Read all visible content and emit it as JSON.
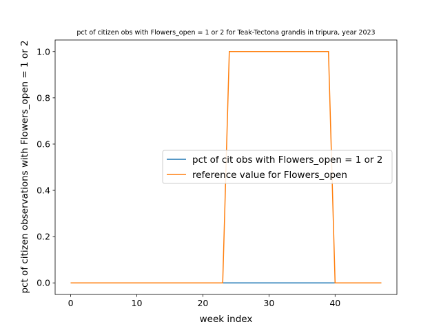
{
  "chart_data": {
    "type": "line",
    "title": "pct of citizen obs with Flowers_open = 1 or 2 for Teak-Tectona grandis in tripura, year 2023",
    "xlabel": "week index",
    "ylabel": "pct of citizen observations with Flowers_open = 1 or 2",
    "xlim": [
      -2.35,
      49.35
    ],
    "ylim": [
      -0.05,
      1.05
    ],
    "x_ticks": [
      0,
      10,
      20,
      30,
      40
    ],
    "y_ticks": [
      0.0,
      0.2,
      0.4,
      0.6,
      0.8,
      1.0
    ],
    "x_tick_labels": [
      "0",
      "10",
      "20",
      "30",
      "40"
    ],
    "y_tick_labels": [
      "0.0",
      "0.2",
      "0.4",
      "0.6",
      "0.8",
      "1.0"
    ],
    "grid": false,
    "legend_position": "center-right",
    "series": [
      {
        "name": "pct of cit obs with Flowers_open = 1 or 2",
        "color": "#1f77b4",
        "x": [
          0,
          47
        ],
        "y": [
          0,
          0
        ]
      },
      {
        "name": "reference value for Flowers_open",
        "color": "#ff7f0e",
        "x": [
          0,
          23,
          24,
          39,
          40,
          47
        ],
        "y": [
          0,
          0,
          1,
          1,
          0,
          0
        ]
      }
    ]
  }
}
